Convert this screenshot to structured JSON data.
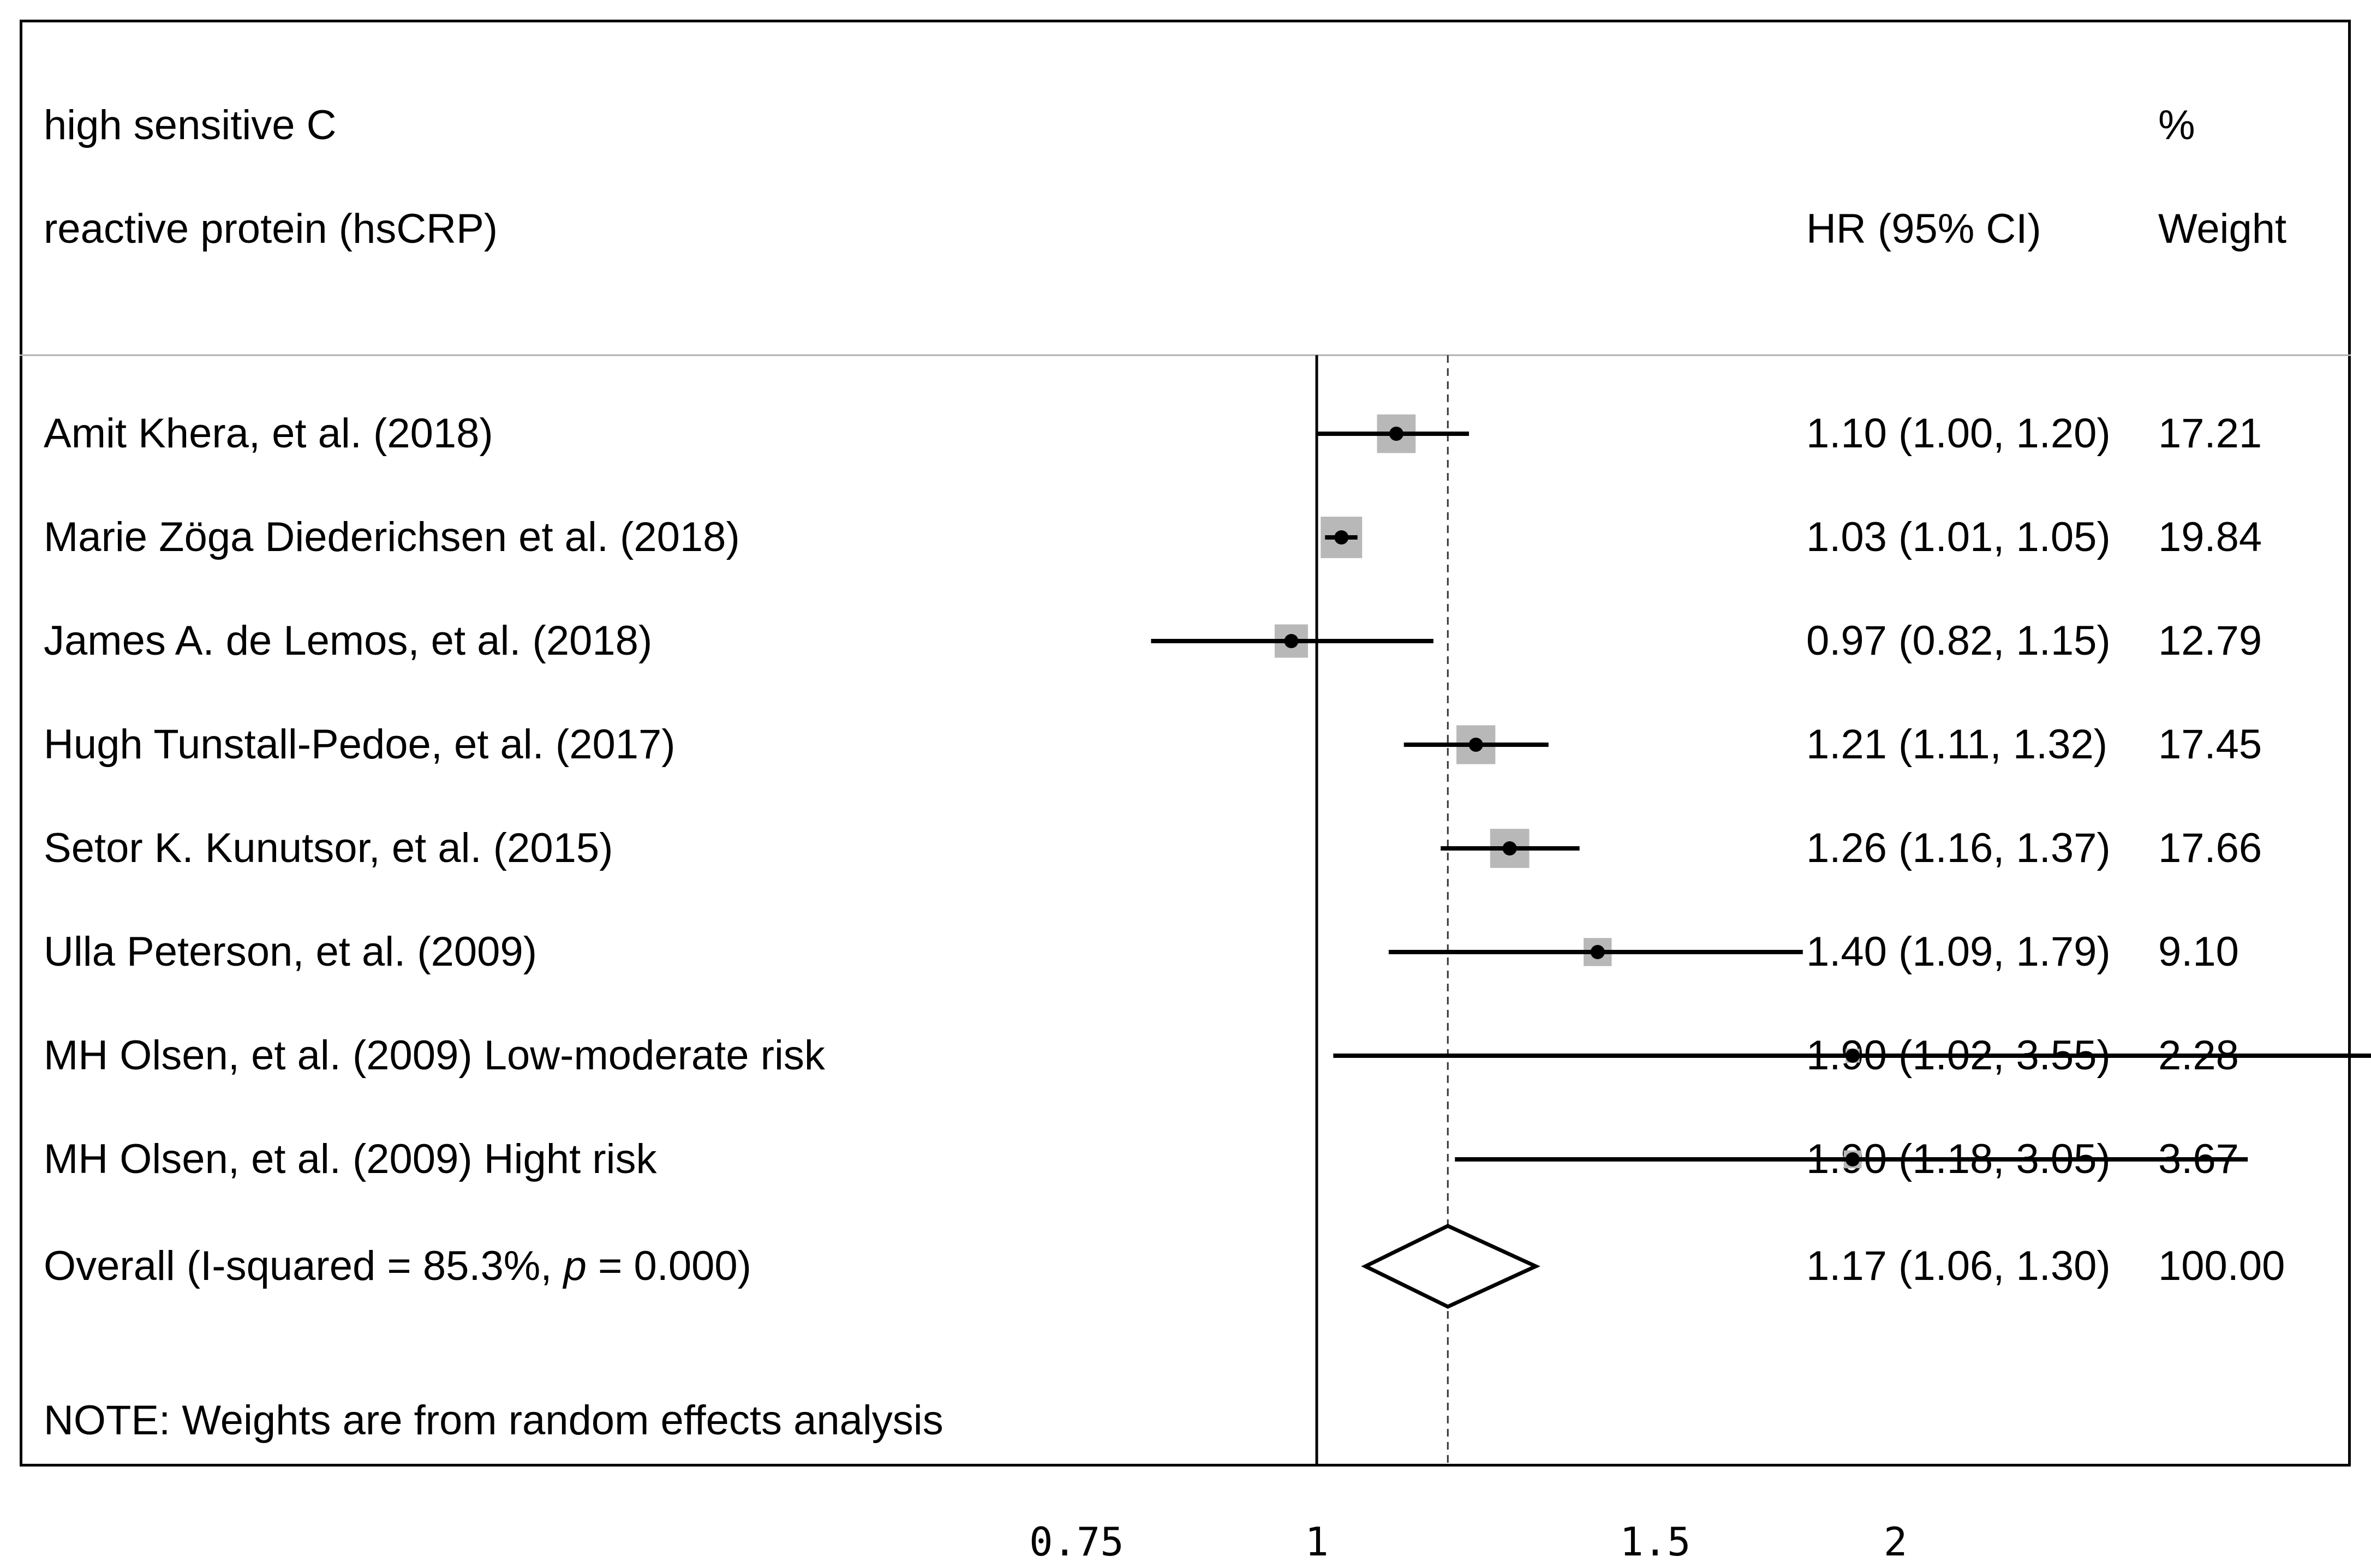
{
  "header": {
    "col1_line1": "high sensitive C",
    "col1_line2": "reactive protein (hsCRP)",
    "hr_header": "HR (95% CI)",
    "weight_line1": "%",
    "weight_line2": "Weight"
  },
  "note": "NOTE: Weights are from random effects analysis",
  "chart_data": {
    "type": "forest",
    "title": "high sensitive C reactive protein (hsCRP)",
    "xscale": "log",
    "xlim": [
      0.75,
      3.6
    ],
    "xticks": [
      0.75,
      1,
      1.5,
      2
    ],
    "xtick_labels": [
      "0.75",
      "1",
      "1.5",
      "2"
    ],
    "null_line": 1,
    "overall_line": 1.17,
    "studies": [
      {
        "label": "Amit Khera, et al. (2018)",
        "hr": 1.1,
        "lo": 1.0,
        "hi": 1.2,
        "hr_text": "1.10 (1.00, 1.20)",
        "weight": "17.21"
      },
      {
        "label": "Marie Zöga Diederichsen et al. (2018)",
        "hr": 1.03,
        "lo": 1.01,
        "hi": 1.05,
        "hr_text": "1.03 (1.01, 1.05)",
        "weight": "19.84"
      },
      {
        "label": "James A. de Lemos, et al. (2018)",
        "hr": 0.97,
        "lo": 0.82,
        "hi": 1.15,
        "hr_text": "0.97 (0.82, 1.15)",
        "weight": "12.79"
      },
      {
        "label": "Hugh Tunstall-Pedoe, et al. (2017)",
        "hr": 1.21,
        "lo": 1.11,
        "hi": 1.32,
        "hr_text": "1.21 (1.11, 1.32)",
        "weight": "17.45"
      },
      {
        "label": "Setor K. Kunutsor, et al. (2015)",
        "hr": 1.26,
        "lo": 1.16,
        "hi": 1.37,
        "hr_text": "1.26 (1.16, 1.37)",
        "weight": "17.66"
      },
      {
        "label": "Ulla Peterson, et al. (2009)",
        "hr": 1.4,
        "lo": 1.09,
        "hi": 1.79,
        "hr_text": "1.40 (1.09, 1.79)",
        "weight": "9.10"
      },
      {
        "label": "MH Olsen, et al. (2009) Low-moderate risk",
        "hr": 1.9,
        "lo": 1.02,
        "hi": 3.55,
        "hr_text": "1.90 (1.02, 3.55)",
        "weight": "2.28"
      },
      {
        "label": "MH Olsen, et al. (2009) Hight risk",
        "hr": 1.9,
        "lo": 1.18,
        "hi": 3.05,
        "hr_text": "1.90 (1.18, 3.05)",
        "weight": "3.67"
      }
    ],
    "overall": {
      "label_prefix": "Overall  (I-squared = 85.3%, ",
      "label_p": "p",
      "label_suffix": " = 0.000)",
      "hr": 1.17,
      "lo": 1.06,
      "hi": 1.3,
      "hr_text": "1.17 (1.06, 1.30)",
      "weight": "100.00"
    },
    "colors": {
      "box": "#b8b8b8",
      "line": "#000000",
      "divider": "#b0b0b0"
    }
  }
}
